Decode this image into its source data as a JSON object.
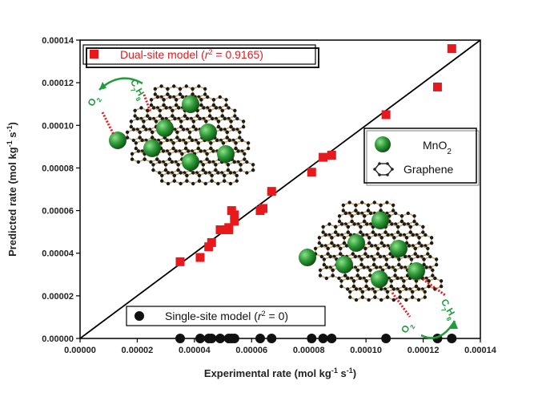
{
  "chart_data": {
    "type": "scatter",
    "xlabel": "Experimental rate (mol kg",
    "xlabel_sup1": "-1",
    "xlabel_mid": " s",
    "xlabel_sup2": "-1",
    "xlabel_end": ")",
    "ylabel": "Predicted rate (mol kg",
    "ylabel_sup1": "-1",
    "ylabel_mid": " s",
    "ylabel_sup2": "-1",
    "ylabel_end": ")",
    "xlim": [
      0,
      0.00014
    ],
    "ylim": [
      0,
      0.00014
    ],
    "x_ticks": [
      "0.00000",
      "0.00002",
      "0.00004",
      "0.00006",
      "0.00008",
      "0.00010",
      "0.00012",
      "0.00014"
    ],
    "y_ticks": [
      "0.00000",
      "0.00002",
      "0.00004",
      "0.00006",
      "0.00008",
      "0.00010",
      "0.00012",
      "0.00014"
    ],
    "diagonal": true,
    "series": [
      {
        "name": "Dual-site model",
        "r2_label": "r",
        "r2_value": " = 0.9165)",
        "color": "#e8191c",
        "marker": "square",
        "points": [
          [
            3.5e-05,
            3.6e-05
          ],
          [
            4.2e-05,
            3.8e-05
          ],
          [
            4.5e-05,
            4.3e-05
          ],
          [
            4.6e-05,
            4.5e-05
          ],
          [
            4.9e-05,
            5.1e-05
          ],
          [
            5.2e-05,
            5.2e-05
          ],
          [
            5.2e-05,
            5.1e-05
          ],
          [
            5.3e-05,
            6e-05
          ],
          [
            5.4e-05,
            5.8e-05
          ],
          [
            5.4e-05,
            5.5e-05
          ],
          [
            6.3e-05,
            6e-05
          ],
          [
            6.4e-05,
            6.1e-05
          ],
          [
            6.7e-05,
            6.9e-05
          ],
          [
            8.1e-05,
            7.8e-05
          ],
          [
            8.5e-05,
            8.5e-05
          ],
          [
            8.8e-05,
            8.6e-05
          ],
          [
            0.000107,
            0.000105
          ],
          [
            0.000125,
            0.000118
          ],
          [
            0.00013,
            0.000136
          ]
        ]
      },
      {
        "name": "Single-site model",
        "r2_label": "r",
        "r2_value": " = 0)",
        "color": "#111111",
        "marker": "circle",
        "points": [
          [
            3.5e-05,
            0
          ],
          [
            4.2e-05,
            0
          ],
          [
            4.5e-05,
            0
          ],
          [
            4.6e-05,
            0
          ],
          [
            4.9e-05,
            0
          ],
          [
            5.2e-05,
            0
          ],
          [
            5.3e-05,
            0
          ],
          [
            5.4e-05,
            0
          ],
          [
            6.3e-05,
            0
          ],
          [
            6.7e-05,
            0
          ],
          [
            8.1e-05,
            0
          ],
          [
            8.5e-05,
            0
          ],
          [
            8.8e-05,
            0
          ],
          [
            0.000107,
            0
          ],
          [
            0.000125,
            0
          ],
          [
            0.00013,
            0
          ]
        ]
      }
    ],
    "inset_legend": [
      {
        "label": "MnO",
        "sub": "2",
        "icon": "mno2-sphere-icon"
      },
      {
        "label": "Graphene",
        "sub": "",
        "icon": "graphene-hexagon-icon"
      }
    ],
    "molecule_labels": {
      "o2": "O",
      "o2_sub": "2",
      "c7h8_c": "C",
      "c7h8_c_sub": "7",
      "c7h8_h": "H",
      "c7h8_h_sub": "8"
    }
  }
}
